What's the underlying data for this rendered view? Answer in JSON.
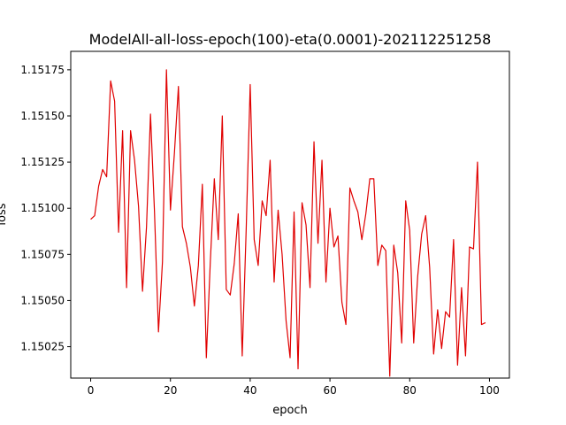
{
  "chart_data": {
    "type": "line",
    "title": "ModelAll-all-loss-epoch(100)-eta(0.0001)-202112251258",
    "xlabel": "epoch",
    "ylabel": "loss",
    "xlim": [
      -5,
      105
    ],
    "ylim": [
      1.15008,
      1.15185
    ],
    "xticks": [
      0,
      20,
      40,
      60,
      80,
      100
    ],
    "xtick_labels": [
      "0",
      "20",
      "40",
      "60",
      "80",
      "100"
    ],
    "yticks": [
      1.15025,
      1.1505,
      1.15075,
      1.151,
      1.15125,
      1.1515,
      1.15175
    ],
    "ytick_labels": [
      "1.15025",
      "1.15050",
      "1.15075",
      "1.15100",
      "1.15125",
      "1.15150",
      "1.15175"
    ],
    "grid": false,
    "legend": "none",
    "series": [
      {
        "color": "#e00000",
        "x": [
          0,
          1,
          2,
          3,
          4,
          5,
          6,
          7,
          8,
          9,
          10,
          11,
          12,
          13,
          14,
          15,
          16,
          17,
          18,
          19,
          20,
          21,
          22,
          23,
          24,
          25,
          26,
          27,
          28,
          29,
          30,
          31,
          32,
          33,
          34,
          35,
          36,
          37,
          38,
          39,
          40,
          41,
          42,
          43,
          44,
          45,
          46,
          47,
          48,
          49,
          50,
          51,
          52,
          53,
          54,
          55,
          56,
          57,
          58,
          59,
          60,
          61,
          62,
          63,
          64,
          65,
          66,
          67,
          68,
          69,
          70,
          71,
          72,
          73,
          74,
          75,
          76,
          77,
          78,
          79,
          80,
          81,
          82,
          83,
          84,
          85,
          86,
          87,
          88,
          89,
          90,
          91,
          92,
          93,
          94,
          95,
          96,
          97,
          98,
          99
        ],
        "y": [
          1.15094,
          1.15096,
          1.15112,
          1.15121,
          1.15117,
          1.15169,
          1.15158,
          1.15087,
          1.15142,
          1.15057,
          1.15142,
          1.15126,
          1.15101,
          1.15055,
          1.1509,
          1.15151,
          1.15098,
          1.15033,
          1.15071,
          1.15175,
          1.15099,
          1.1513,
          1.15166,
          1.1509,
          1.15081,
          1.15068,
          1.15047,
          1.15069,
          1.15113,
          1.15019,
          1.15071,
          1.15116,
          1.15083,
          1.1515,
          1.15056,
          1.15053,
          1.1507,
          1.15097,
          1.1502,
          1.15089,
          1.15167,
          1.15083,
          1.15069,
          1.15104,
          1.15096,
          1.15126,
          1.1506,
          1.15099,
          1.15075,
          1.15039,
          1.15019,
          1.15098,
          1.15013,
          1.15103,
          1.15091,
          1.15057,
          1.15136,
          1.15081,
          1.15126,
          1.1506,
          1.151,
          1.15079,
          1.15085,
          1.15049,
          1.15037,
          1.15111,
          1.15104,
          1.15098,
          1.15083,
          1.15097,
          1.15116,
          1.15116,
          1.15069,
          1.1508,
          1.15077,
          1.15009,
          1.1508,
          1.15065,
          1.15027,
          1.15104,
          1.15088,
          1.15027,
          1.15063,
          1.15086,
          1.15096,
          1.15068,
          1.15021,
          1.15045,
          1.15024,
          1.15044,
          1.15041,
          1.15083,
          1.15015,
          1.15057,
          1.1502,
          1.15079,
          1.15078,
          1.15125,
          1.15037,
          1.15038
        ]
      }
    ]
  }
}
